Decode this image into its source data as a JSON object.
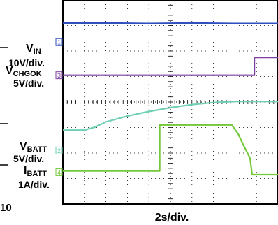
{
  "chart_data": {
    "type": "line",
    "xlabel": "2s/div.",
    "x_range": [
      0,
      10
    ],
    "y_range": [
      0,
      8
    ],
    "grid": true,
    "figure_number": "10",
    "channels": [
      {
        "id": "1",
        "name": "V",
        "subscript": "IN",
        "scale": "10V/div.",
        "color": "#2f4fbf",
        "marker_level": 6.35
      },
      {
        "id": "3",
        "name": "V",
        "subscript": "CHGOK",
        "scale": "5V/div.",
        "color": "#7b3f9e",
        "marker_level": 5.05
      },
      {
        "id": "2",
        "name": "V",
        "subscript": "BATT",
        "scale": "5V/div.",
        "color": "#6fcfb4",
        "marker_level": 2.1
      },
      {
        "id": "4",
        "name": "I",
        "subscript": "BATT",
        "scale": "1A/div.",
        "color": "#74c83a",
        "marker_level": 1.25
      }
    ],
    "series": [
      {
        "channel": "1",
        "x": [
          0,
          2,
          4,
          6,
          8,
          10
        ],
        "y": [
          7.1,
          7.1,
          7.08,
          7.1,
          7.08,
          7.08
        ]
      },
      {
        "channel": "3",
        "x": [
          0,
          2,
          4,
          6,
          8.9,
          8.9,
          10
        ],
        "y": [
          5.05,
          5.05,
          5.05,
          5.05,
          5.05,
          5.75,
          5.75
        ]
      },
      {
        "channel": "2",
        "x": [
          0,
          1,
          1.5,
          2,
          3,
          4,
          5,
          6,
          7,
          8,
          9,
          10
        ],
        "y": [
          2.9,
          2.9,
          3.02,
          3.22,
          3.45,
          3.63,
          3.78,
          3.9,
          3.98,
          4.02,
          4.02,
          4.02
        ]
      },
      {
        "channel": "4",
        "x": [
          0,
          4.5,
          4.5,
          7.85,
          8.15,
          8.4,
          8.7,
          8.8,
          10
        ],
        "y": [
          1.3,
          1.3,
          3.1,
          3.1,
          2.75,
          2.3,
          1.8,
          1.15,
          1.15
        ]
      }
    ]
  }
}
